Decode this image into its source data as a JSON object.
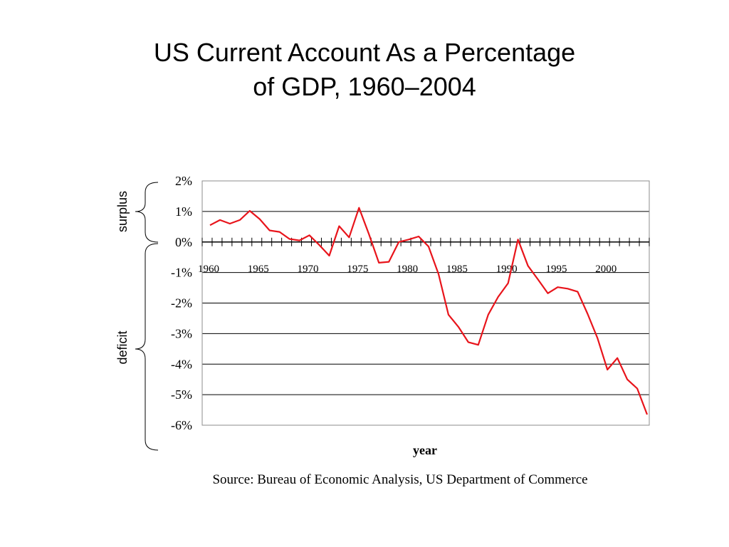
{
  "slide": {
    "title_line1": "US Current Account As a Percentage",
    "title_line2": "of GDP, 1960–2004"
  },
  "chart_data": {
    "type": "line",
    "title": "US Current Account As a Percentage of GDP, 1960–2004",
    "xlabel": "year",
    "ylabel": "",
    "x": [
      1960,
      1961,
      1962,
      1963,
      1964,
      1965,
      1966,
      1967,
      1968,
      1969,
      1970,
      1971,
      1972,
      1973,
      1974,
      1975,
      1976,
      1977,
      1978,
      1979,
      1980,
      1981,
      1982,
      1983,
      1984,
      1985,
      1986,
      1987,
      1988,
      1989,
      1990,
      1991,
      1992,
      1993,
      1994,
      1995,
      1996,
      1997,
      1998,
      1999,
      2000,
      2001,
      2002,
      2003,
      2004
    ],
    "xlim": [
      1960,
      2005
    ],
    "ylim": [
      -6,
      2
    ],
    "y_ticks": [
      2,
      1,
      0,
      -1,
      -2,
      -3,
      -4,
      -5,
      -6
    ],
    "y_tick_labels": [
      "2%",
      "1%",
      "0%",
      "-1%",
      "-2%",
      "-3%",
      "-4%",
      "-5%",
      "-6%"
    ],
    "x_tick_labels": [
      "1960",
      "1965",
      "1970",
      "1975",
      "1980",
      "1985",
      "1990",
      "1995",
      "2000"
    ],
    "x_tick_years": [
      1960,
      1965,
      1970,
      1975,
      1980,
      1985,
      1990,
      1995,
      2000
    ],
    "grid": "horizontal",
    "series": [
      {
        "color": "#e8141b",
        "values": [
          0.55,
          0.72,
          0.6,
          0.72,
          1.02,
          0.75,
          0.38,
          0.33,
          0.1,
          0.05,
          0.22,
          -0.1,
          -0.45,
          0.52,
          0.15,
          1.12,
          0.25,
          -0.68,
          -0.65,
          0.0,
          0.08,
          0.18,
          -0.15,
          -1.05,
          -2.38,
          -2.78,
          -3.28,
          -3.37,
          -2.38,
          -1.8,
          -1.35,
          0.08,
          -0.78,
          -1.22,
          -1.68,
          -1.48,
          -1.53,
          -1.63,
          -2.35,
          -3.15,
          -4.18,
          -3.8,
          -4.5,
          -4.8,
          -5.65
        ]
      }
    ],
    "annotations": {
      "surplus": "surplus",
      "deficit": "deficit",
      "source": "Source:  Bureau of Economic Analysis, US Department of Commerce"
    }
  }
}
